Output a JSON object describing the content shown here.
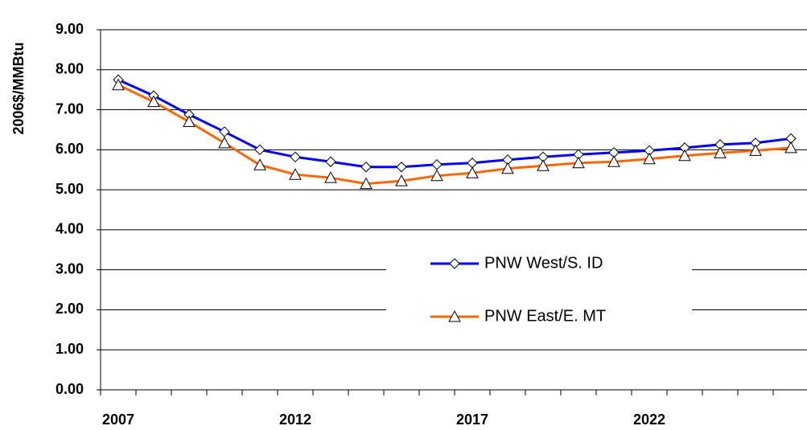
{
  "chart_data": {
    "type": "line",
    "y_label": "2006$/MMBtu",
    "categories": [
      "2007",
      null,
      null,
      null,
      null,
      "2012",
      null,
      null,
      null,
      null,
      "2017",
      null,
      null,
      null,
      null,
      "2022",
      null,
      null,
      null,
      null
    ],
    "series": [
      {
        "name": "PNW West/S. ID",
        "color": "#0000ff",
        "marker": "diamond",
        "values": [
          7.75,
          7.35,
          6.88,
          6.45,
          6.0,
          5.82,
          5.7,
          5.57,
          5.57,
          5.63,
          5.67,
          5.75,
          5.82,
          5.88,
          5.93,
          5.98,
          6.05,
          6.13,
          6.17,
          6.28
        ]
      },
      {
        "name": "PNW East/E. MT",
        "color": "#ff6600",
        "marker": "triangle",
        "values": [
          7.62,
          7.2,
          6.7,
          6.17,
          5.62,
          5.38,
          5.3,
          5.15,
          5.22,
          5.35,
          5.42,
          5.53,
          5.6,
          5.67,
          5.7,
          5.77,
          5.85,
          5.92,
          5.98,
          6.05
        ]
      }
    ],
    "ylim": [
      0,
      9
    ],
    "yticks": [
      {
        "value": 0,
        "label": "0.00"
      },
      {
        "value": 1,
        "label": "1.00"
      },
      {
        "value": 2,
        "label": "2.00"
      },
      {
        "value": 3,
        "label": "3.00"
      },
      {
        "value": 4,
        "label": "4.00"
      },
      {
        "value": 5,
        "label": "5.00"
      },
      {
        "value": 6,
        "label": "6.00"
      },
      {
        "value": 7,
        "label": "7.00"
      },
      {
        "value": 8,
        "label": "8.00"
      },
      {
        "value": 9,
        "label": "9.00"
      }
    ],
    "grid": true,
    "legend": "center"
  }
}
